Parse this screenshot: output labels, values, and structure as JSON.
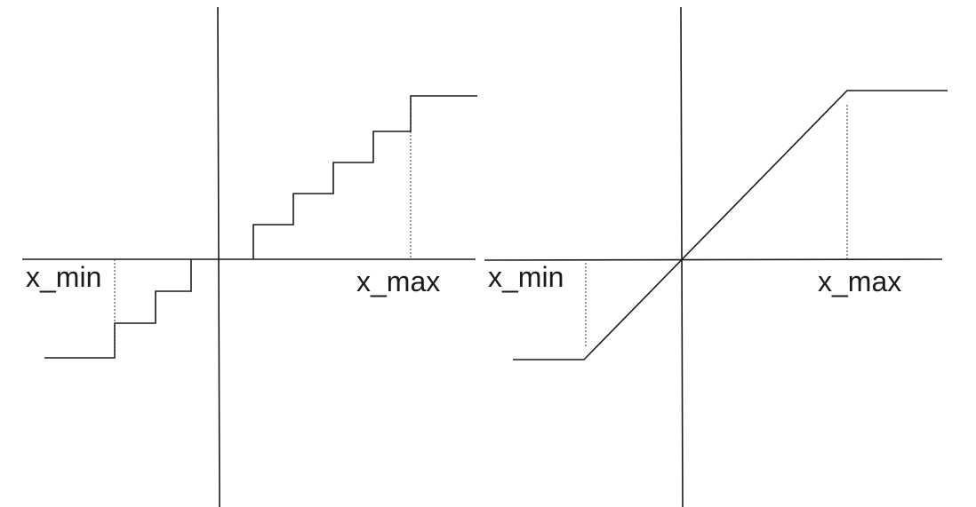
{
  "labels": {
    "x_min": "x_min",
    "x_max": "x_max"
  },
  "colors": {
    "stroke": "#1a1a1a",
    "background": "#ffffff"
  }
}
